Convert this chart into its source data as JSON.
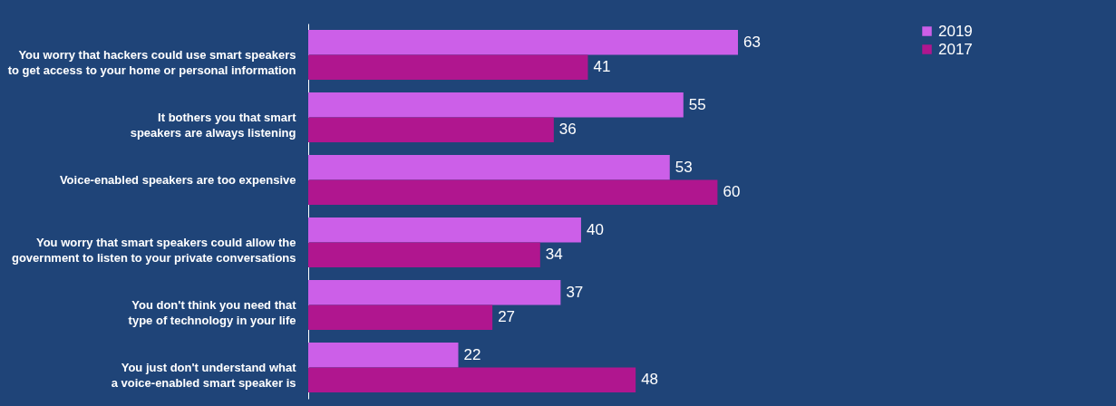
{
  "chart_data": {
    "type": "bar",
    "orientation": "horizontal",
    "categories": [
      "You worry that hackers could use smart speakers\nto get access to your home or personal information",
      "It bothers you that smart\nspeakers are always listening",
      "Voice-enabled speakers are too expensive",
      "You worry that smart speakers could allow the\ngovernment to listen to your private conversations",
      "You don't think you need that\ntype of technology in your life",
      "You just don't understand what\na voice-enabled smart speaker is"
    ],
    "series": [
      {
        "name": "2019",
        "color": "#cc5fe8",
        "values": [
          63,
          55,
          53,
          40,
          37,
          22
        ]
      },
      {
        "name": "2017",
        "color": "#b0168f",
        "values": [
          41,
          36,
          60,
          34,
          27,
          48
        ]
      }
    ],
    "data_labels": true,
    "legend": "right",
    "grid": false
  }
}
